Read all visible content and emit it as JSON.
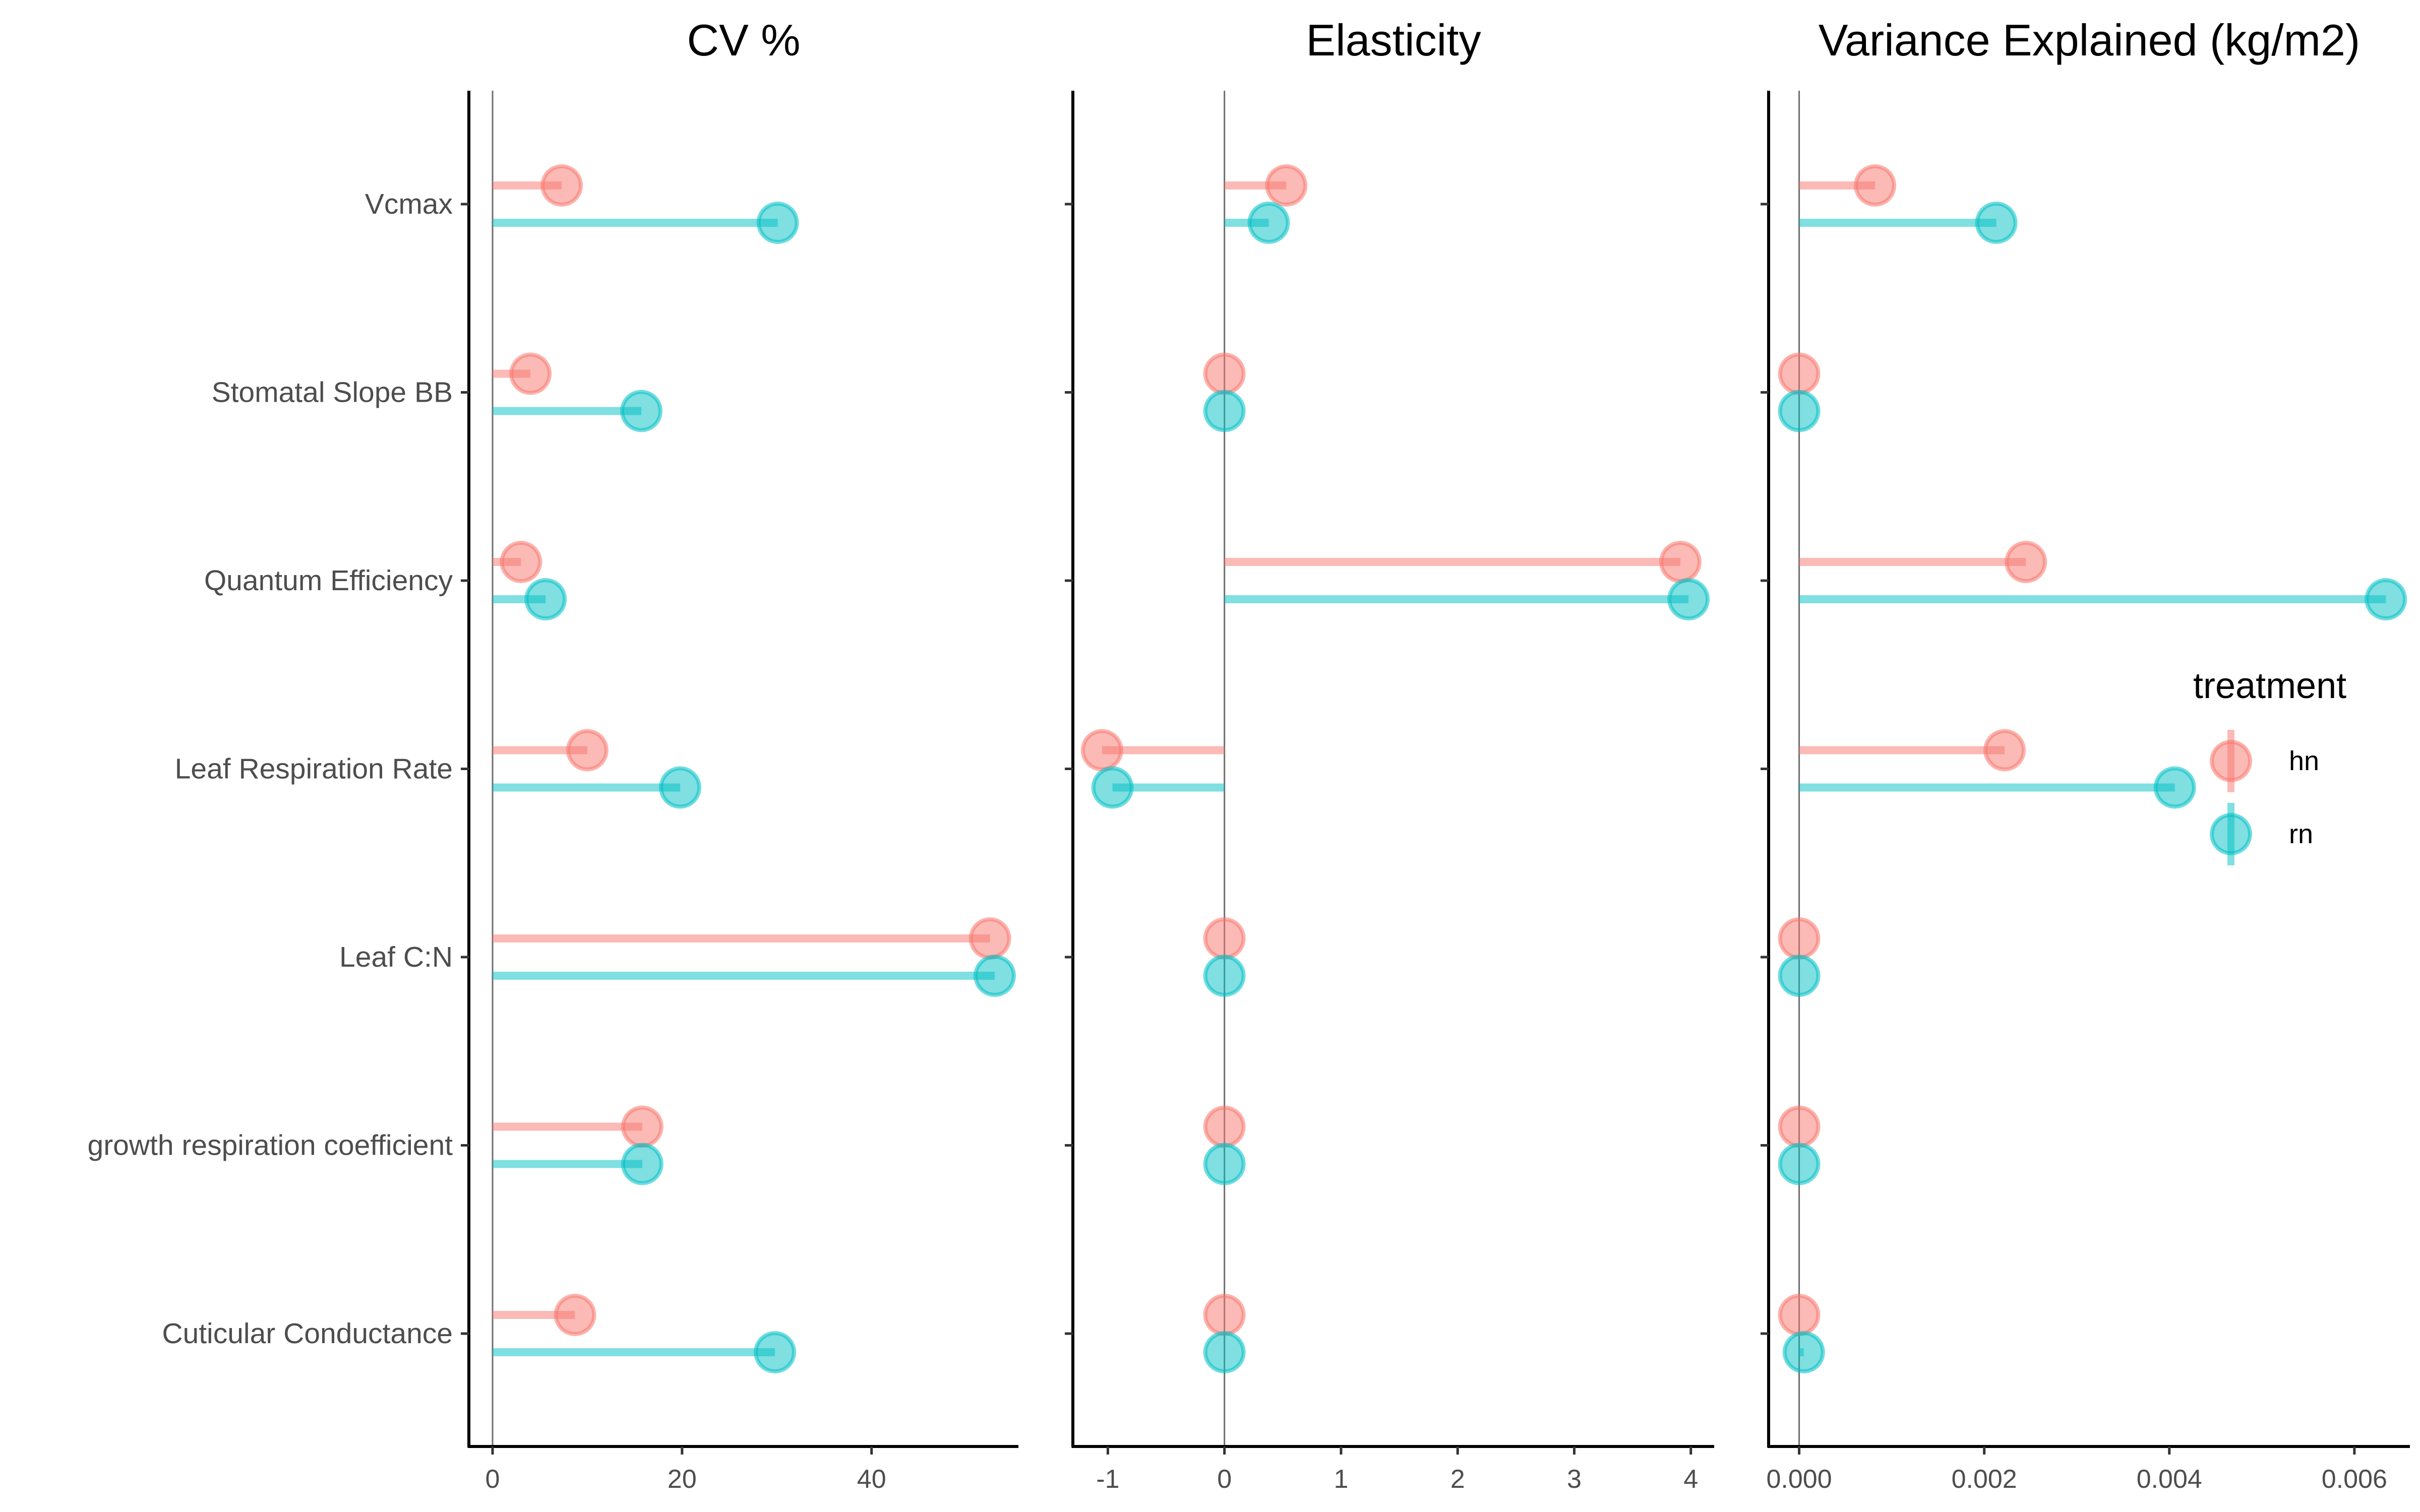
{
  "chart_data": {
    "type": "lollipop",
    "categories": [
      "Vcmax",
      "Stomatal Slope BB",
      "Quantum Efficiency",
      "Leaf Respiration Rate",
      "Leaf C:N",
      "growth respiration coefficient",
      "Cuticular Conductance"
    ],
    "legend": {
      "title": "treatment",
      "position": "right",
      "entries": [
        "hn",
        "rn"
      ]
    },
    "colors": {
      "hn": "#F8766D",
      "rn": "#00BFC4"
    },
    "grid": false,
    "panels": [
      {
        "title": "CV %",
        "xlim": [
          -2.5,
          55.5
        ],
        "xticks": [
          0,
          20,
          40
        ],
        "xtick_labels": [
          "0",
          "20",
          "40"
        ],
        "series": [
          {
            "name": "hn",
            "values": [
              7.3,
              4.0,
              3.0,
              10.0,
              52.5,
              15.8,
              8.7
            ]
          },
          {
            "name": "rn",
            "values": [
              30.1,
              15.7,
              5.6,
              19.8,
              53.0,
              15.8,
              29.8
            ]
          }
        ]
      },
      {
        "title": "Elasticity",
        "xlim": [
          -1.3,
          4.2
        ],
        "xticks": [
          -1,
          0,
          1,
          2,
          3,
          4
        ],
        "xtick_labels": [
          "-1",
          "0",
          "1",
          "2",
          "3",
          "4"
        ],
        "series": [
          {
            "name": "hn",
            "values": [
              0.53,
              0.0,
              3.91,
              -1.05,
              0.0,
              0.0,
              0.0
            ]
          },
          {
            "name": "rn",
            "values": [
              0.38,
              0.0,
              3.98,
              -0.96,
              0.0,
              0.0,
              0.0
            ]
          }
        ]
      },
      {
        "title": "Variance Explained (kg/m2)",
        "xlim": [
          -0.00033,
          0.0066
        ],
        "xticks": [
          0,
          0.002,
          0.004,
          0.006
        ],
        "xtick_labels": [
          "0.000",
          "0.002",
          "0.004",
          "0.006"
        ],
        "series": [
          {
            "name": "hn",
            "values": [
              0.00082,
              0.0,
              0.00245,
              0.00222,
              0.0,
              0.0,
              0.0
            ]
          },
          {
            "name": "rn",
            "values": [
              0.00213,
              0.0,
              0.00634,
              0.00406,
              0.0,
              0.0,
              5e-05
            ]
          }
        ]
      }
    ]
  }
}
